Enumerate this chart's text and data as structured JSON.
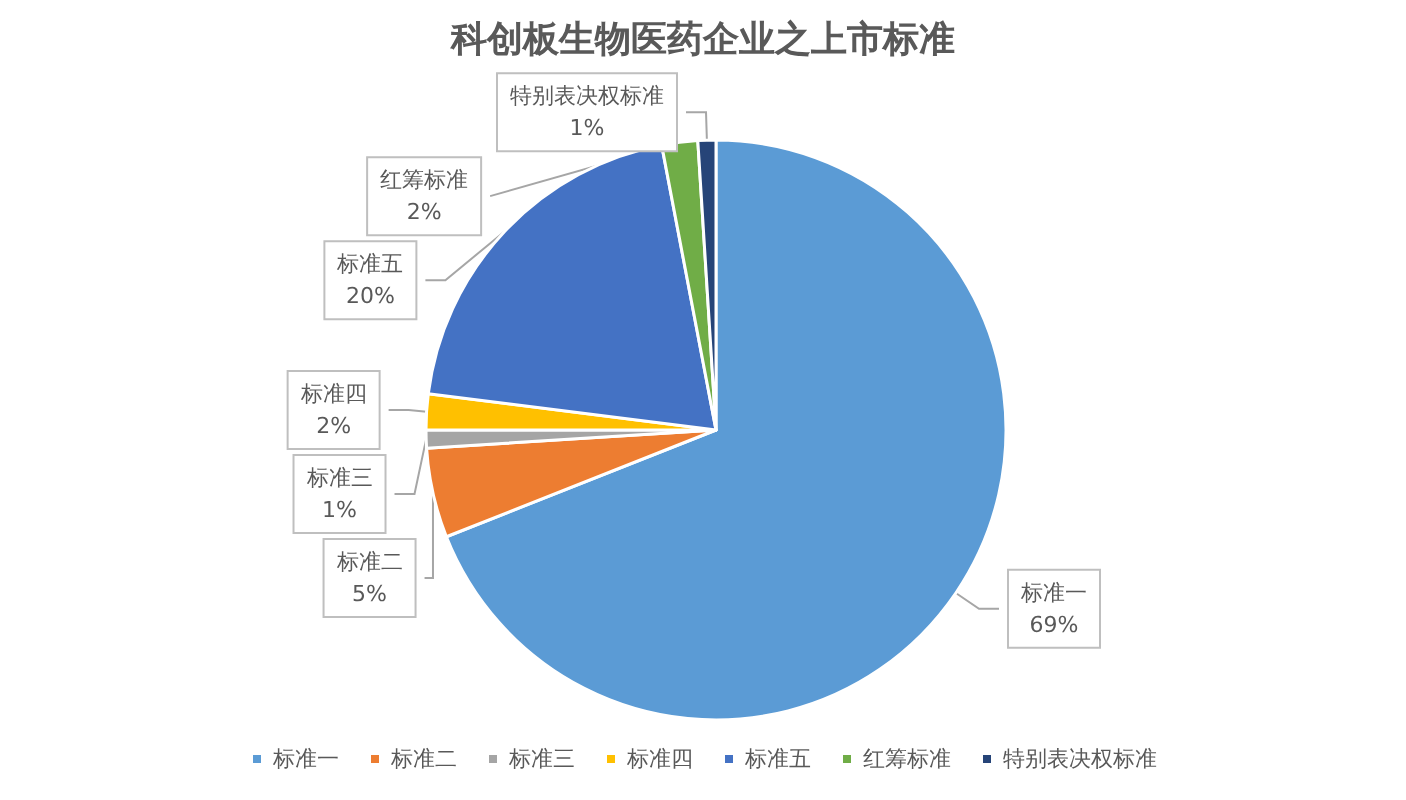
{
  "chart_data": {
    "type": "pie",
    "title": "科创板生物医药企业之上市标准",
    "categories": [
      "标准一",
      "标准二",
      "标准三",
      "标准四",
      "标准五",
      "红筹标准",
      "特别表决权标准"
    ],
    "values": [
      69,
      5,
      1,
      2,
      20,
      2,
      1
    ],
    "value_labels": [
      "69%",
      "5%",
      "1%",
      "2%",
      "20%",
      "2%",
      "1%"
    ],
    "colors": [
      "#5b9bd5",
      "#ed7d31",
      "#a5a5a5",
      "#ffc000",
      "#4472c4",
      "#70ad47",
      "#264478"
    ],
    "legend": "bottom"
  }
}
